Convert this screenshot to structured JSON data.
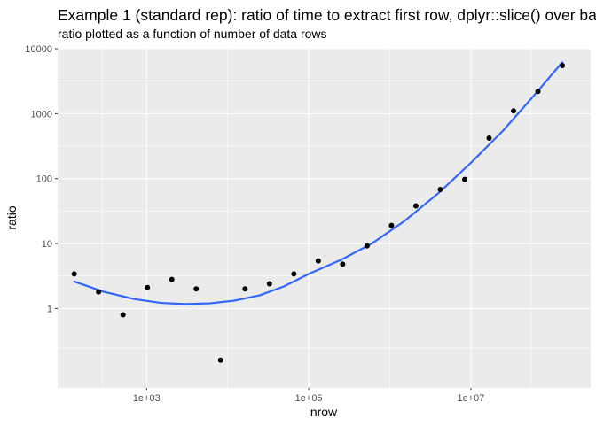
{
  "chart_data": {
    "type": "scatter",
    "title": "Example 1 (standard rep): ratio of time to extract first row, dplyr::slice() over ba",
    "subtitle": "ratio plotted as a function of number of data rows",
    "xlabel": "nrow",
    "ylabel": "ratio",
    "x_scale": "log10",
    "y_scale": "log10",
    "xlim": [
      80,
      300000000
    ],
    "ylim": [
      0.06,
      10000
    ],
    "x_ticks": [
      1000,
      100000,
      10000000
    ],
    "x_tick_labels": [
      "1e+03",
      "1e+05",
      "1e+07"
    ],
    "y_ticks": [
      1,
      10,
      100,
      1000,
      10000
    ],
    "y_tick_labels": [
      "1",
      "10",
      "100",
      "1000",
      "10000"
    ],
    "grid": true,
    "colors": {
      "panel_background": "#ebebeb",
      "grid": "#ffffff",
      "points": "#000000",
      "smooth_line": "#3366ff"
    },
    "series": [
      {
        "type": "points",
        "x": [
          128,
          256,
          512,
          1024,
          2048,
          4096,
          8192,
          16384,
          32768,
          65536,
          131072,
          262144,
          524288,
          1048576,
          2097152,
          4194304,
          8388608,
          16777216,
          33554432,
          67108864,
          134217728
        ],
        "y": [
          3.4,
          1.8,
          0.8,
          2.1,
          2.8,
          2.0,
          0.16,
          2.0,
          2.4,
          3.4,
          5.4,
          4.8,
          9.2,
          19,
          38,
          68,
          97,
          420,
          1100,
          2200,
          5500
        ]
      },
      {
        "type": "smooth",
        "x": [
          128,
          300,
          700,
          1500,
          3000,
          6000,
          12000,
          25000,
          50000,
          100000,
          250000,
          600000,
          1500000,
          4000000,
          10000000,
          25000000,
          60000000,
          134217728
        ],
        "y": [
          2.6,
          1.8,
          1.4,
          1.22,
          1.17,
          1.2,
          1.32,
          1.6,
          2.2,
          3.4,
          5.6,
          10,
          22,
          60,
          175,
          550,
          1900,
          6200
        ]
      }
    ]
  }
}
